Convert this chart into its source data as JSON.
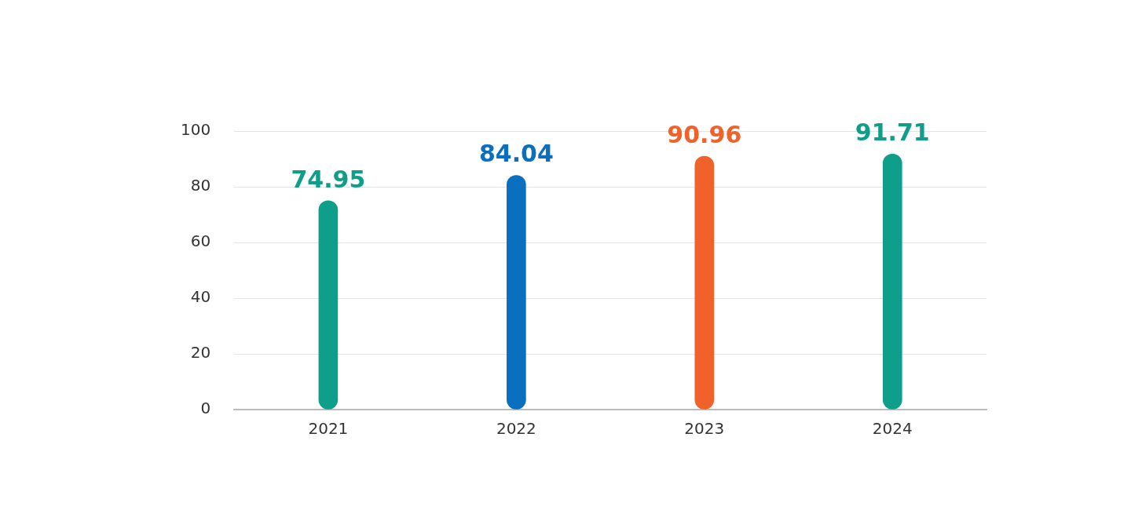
{
  "chart_data": {
    "type": "bar",
    "categories": [
      "2021",
      "2022",
      "2023",
      "2024"
    ],
    "values": [
      74.95,
      84.04,
      90.96,
      91.71
    ],
    "colors": [
      "#0e9e8a",
      "#0a6fbf",
      "#f0622a",
      "#0e9e8a"
    ],
    "ylim": [
      0,
      100
    ],
    "yticks": [
      0,
      20,
      40,
      60,
      80,
      100
    ],
    "grid": "y",
    "data_labels": true
  }
}
